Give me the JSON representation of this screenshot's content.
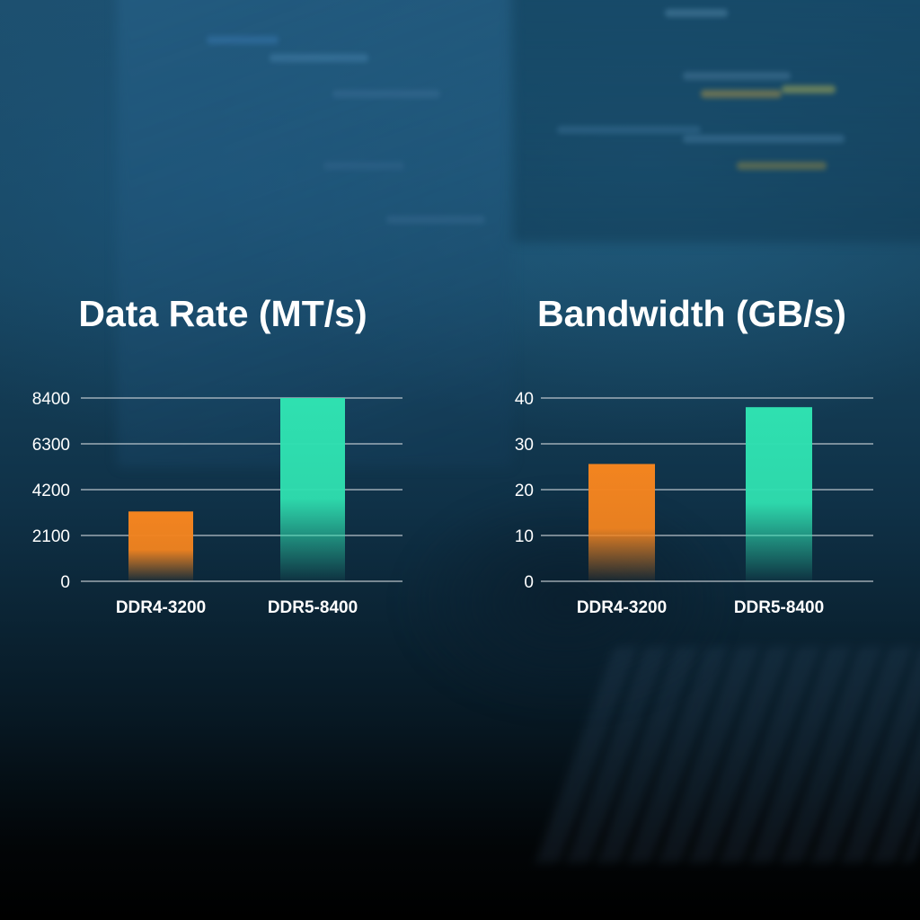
{
  "colors": {
    "ddr4": "#f3841f",
    "ddr5": "#2fe0b0",
    "gridline": "#d7dde2"
  },
  "chart_data": [
    {
      "type": "bar",
      "title": "Data Rate (MT/s)",
      "categories": [
        "DDR4-3200",
        "DDR5-8400"
      ],
      "values": [
        3200,
        8400
      ],
      "yticks": [
        "0",
        "2100",
        "4200",
        "6300",
        "8400"
      ],
      "ylim": [
        0,
        8400
      ],
      "grid": true
    },
    {
      "type": "bar",
      "title": "Bandwidth (GB/s)",
      "categories": [
        "DDR4-3200",
        "DDR5-8400"
      ],
      "values": [
        25.6,
        38
      ],
      "yticks": [
        "0",
        "10",
        "20",
        "30",
        "40"
      ],
      "ylim": [
        0,
        40
      ],
      "grid": true
    }
  ]
}
